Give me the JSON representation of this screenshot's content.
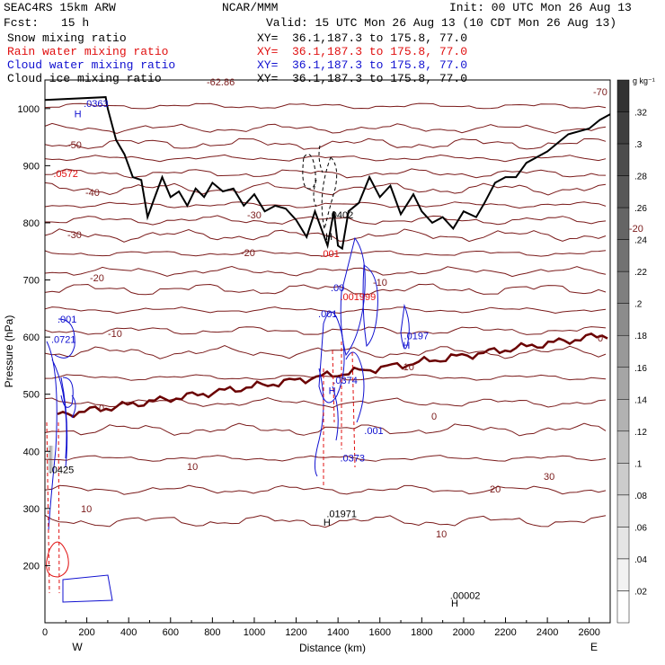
{
  "header": {
    "model": "SEAC4RS 15km ARW",
    "center": "NCAR/MMM",
    "init": "Init: 00 UTC Mon 26 Aug 13",
    "fcst_label": "Fcst:",
    "fcst_value": "15 h",
    "valid": "Valid: 15 UTC Mon 26 Aug 13 (10 CDT Mon 26 Aug 13)"
  },
  "legend": [
    {
      "name": "Snow mixing ratio",
      "xy": "XY=  36.1,187.3 to 175.8, 77.0",
      "color": "#000000"
    },
    {
      "name": "Rain water mixing ratio",
      "xy": "XY=  36.1,187.3 to 175.8, 77.0",
      "color": "#e01010"
    },
    {
      "name": "Cloud water mixing ratio",
      "xy": "XY=  36.1,187.3 to 175.8, 77.0",
      "color": "#1010d0"
    },
    {
      "name": "Cloud ice mixing ratio",
      "xy": "XY=  36.1,187.3 to 175.8, 77.0",
      "color": "#000000"
    }
  ],
  "colors": {
    "temperature": "#7a1a1a",
    "freezing": "#6a0000",
    "terrain": "#000000",
    "rain": "#e01010",
    "cloud": "#1010d0"
  },
  "chart_data": {
    "type": "cross-section",
    "xlabel": "Distance (km)",
    "ylabel": "Pressure (hPa)",
    "xlim": [
      0,
      2700
    ],
    "ylim": [
      1050,
      100
    ],
    "xticks": [
      "0",
      "200",
      "400",
      "600",
      "800",
      "1000",
      "1200",
      "1400",
      "1600",
      "1800",
      "2000",
      "2200",
      "2400",
      "2600"
    ],
    "xtick_values": [
      0,
      200,
      400,
      600,
      800,
      1000,
      1200,
      1400,
      1600,
      1800,
      2000,
      2200,
      2400,
      2600
    ],
    "yticks": [
      "200",
      "300",
      "400",
      "500",
      "600",
      "700",
      "800",
      "900",
      "1000"
    ],
    "ytick_values": [
      200,
      300,
      400,
      500,
      600,
      700,
      800,
      900,
      1000
    ],
    "x_end_labels": {
      "left": "W",
      "right": "E"
    },
    "colorbar": {
      "unit": "g kg⁻¹",
      "labels": [
        ".32",
        ".3",
        ".28",
        ".26",
        ".24",
        ".22",
        ".2",
        ".18",
        ".16",
        ".14",
        ".12",
        ".1",
        ".08",
        ".06",
        ".04",
        ".02"
      ],
      "values": [
        0.32,
        0.3,
        0.28,
        0.26,
        0.24,
        0.22,
        0.2,
        0.18,
        0.16,
        0.14,
        0.12,
        0.1,
        0.08,
        0.06,
        0.04,
        0.02
      ]
    },
    "temperature_contour_labels": [
      "-70",
      "-62.86",
      "-50",
      "-40",
      "-30",
      "-30",
      "-20",
      "-20",
      "-20",
      "-10",
      "-10",
      "-10",
      "0",
      "0",
      "0",
      "10",
      "10",
      "10",
      "20",
      "30"
    ],
    "annotations": [
      {
        "text": "H",
        "x": 1940,
        "p": 128,
        "color": "#000000"
      },
      {
        "text": ".00002",
        "x": 1935,
        "p": 142,
        "color": "#000000"
      },
      {
        "text": "H",
        "x": 1330,
        "p": 270,
        "color": "#000000"
      },
      {
        "text": ".01971",
        "x": 1345,
        "p": 285,
        "color": "#000000"
      },
      {
        "text": ".0425",
        "x": 20,
        "p": 362,
        "color": "#000000"
      },
      {
        "text": ".0373",
        "x": 1410,
        "p": 382,
        "color": "#1010d0"
      },
      {
        "text": ".001",
        "x": 1525,
        "p": 430,
        "color": "#1010d0"
      },
      {
        "text": "H",
        "x": 1355,
        "p": 500,
        "color": "#1010d0"
      },
      {
        "text": ".0374",
        "x": 1375,
        "p": 518,
        "color": "#1010d0"
      },
      {
        "text": ".0721",
        "x": 30,
        "p": 590,
        "color": "#1010d0"
      },
      {
        "text": "H",
        "x": 1710,
        "p": 580,
        "color": "#1010d0"
      },
      {
        "text": ".0197",
        "x": 1715,
        "p": 596,
        "color": "#1010d0"
      },
      {
        "text": ".001",
        "x": 60,
        "p": 625,
        "color": "#1010d0"
      },
      {
        "text": ".001",
        "x": 1305,
        "p": 635,
        "color": "#1010d0"
      },
      {
        "text": ".00",
        "x": 1365,
        "p": 680,
        "color": "#1010d0"
      },
      {
        "text": ".001999",
        "x": 1410,
        "p": 665,
        "color": "#e01010"
      },
      {
        "text": ".001",
        "x": 1315,
        "p": 740,
        "color": "#e01010"
      },
      {
        "text": "H",
        "x": 1340,
        "p": 770,
        "color": "#000000"
      },
      {
        "text": ".0402",
        "x": 1355,
        "p": 808,
        "color": "#000000"
      },
      {
        "text": ".0572",
        "x": 40,
        "p": 880,
        "color": "#e01010"
      },
      {
        "text": "H",
        "x": 140,
        "p": 985,
        "color": "#1010d0"
      },
      {
        "text": ".0363",
        "x": 185,
        "p": 1003,
        "color": "#1010d0"
      }
    ]
  }
}
